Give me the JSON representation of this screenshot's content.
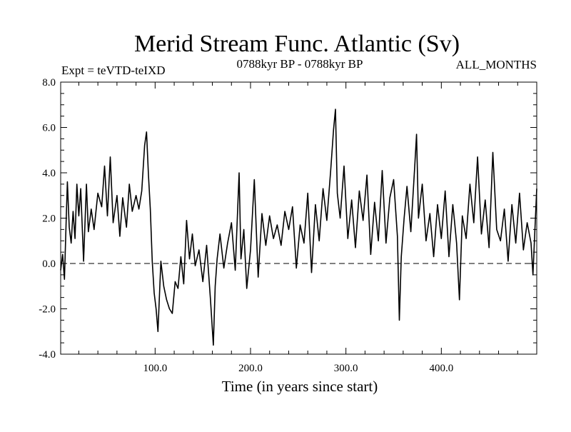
{
  "chart_data": {
    "type": "line",
    "title": "Merid Stream Func. Atlantic (Sv)",
    "subtitle_left": "Expt = teVTD-teIXD",
    "subtitle_center": "0788kyr BP - 0788kyr BP",
    "subtitle_right": "ALL_MONTHS",
    "xlabel": "Time (in years since start)",
    "ylabel": "",
    "xlim": [
      1,
      500
    ],
    "ylim": [
      -4.0,
      8.0
    ],
    "x_ticks": [
      100.0,
      200.0,
      300.0,
      400.0
    ],
    "x_tick_labels": [
      "100.0",
      "200.0",
      "300.0",
      "400.0"
    ],
    "y_ticks": [
      -4.0,
      -2.0,
      0.0,
      2.0,
      4.0,
      6.0,
      8.0
    ],
    "y_tick_labels": [
      "-4.0",
      "-2.0",
      "0.0",
      "2.0",
      "4.0",
      "6.0",
      "8.0"
    ],
    "reference_line": {
      "y": 0.0,
      "style": "dashed"
    },
    "grid": false,
    "series": [
      {
        "color": "#000000",
        "x": [
          1,
          3,
          5,
          7,
          8,
          10,
          12,
          14,
          16,
          18,
          20,
          22,
          25,
          28,
          30,
          33,
          36,
          40,
          44,
          47,
          50,
          53,
          56,
          60,
          63,
          66,
          70,
          73,
          76,
          80,
          83,
          86,
          89,
          91,
          93,
          95,
          97,
          99,
          101,
          103,
          106,
          109,
          112,
          115,
          118,
          121,
          124,
          127,
          130,
          133,
          136,
          139,
          142,
          146,
          150,
          154,
          158,
          161,
          163,
          165,
          168,
          172,
          176,
          180,
          184,
          188,
          190,
          193,
          196,
          200,
          204,
          208,
          212,
          216,
          220,
          224,
          228,
          232,
          236,
          240,
          244,
          248,
          252,
          256,
          260,
          264,
          268,
          272,
          276,
          280,
          284,
          287,
          289,
          291,
          294,
          298,
          302,
          306,
          310,
          314,
          318,
          322,
          326,
          330,
          334,
          338,
          342,
          346,
          350,
          354,
          356,
          358,
          361,
          364,
          368,
          372,
          374,
          376,
          380,
          384,
          388,
          392,
          396,
          400,
          404,
          408,
          412,
          414,
          416,
          419,
          422,
          426,
          430,
          434,
          438,
          442,
          446,
          450,
          454,
          458,
          462,
          466,
          470,
          474,
          478,
          482,
          486,
          490,
          494,
          496,
          498,
          500
        ],
        "values": [
          -0.3,
          0.4,
          -0.7,
          2.2,
          3.6,
          1.6,
          0.9,
          2.3,
          1.1,
          3.5,
          2.1,
          3.3,
          0.1,
          3.5,
          1.4,
          2.4,
          1.5,
          3.1,
          2.5,
          4.3,
          2.1,
          4.7,
          1.8,
          3.0,
          1.2,
          2.9,
          1.6,
          3.5,
          2.3,
          3.0,
          2.4,
          3.2,
          5.2,
          5.8,
          3.9,
          2.4,
          0.1,
          -1.3,
          -2.0,
          -3.0,
          0.1,
          -1.0,
          -1.6,
          -2.0,
          -2.2,
          -0.8,
          -1.1,
          0.3,
          -0.9,
          1.9,
          0.2,
          1.3,
          -0.1,
          0.6,
          -0.8,
          0.8,
          -1.6,
          -3.6,
          -1.0,
          0.2,
          1.3,
          -0.2,
          0.9,
          1.8,
          -0.3,
          4.0,
          0.2,
          1.5,
          -1.1,
          0.6,
          3.7,
          -0.6,
          2.2,
          0.8,
          2.1,
          1.1,
          1.7,
          0.8,
          2.3,
          1.5,
          2.5,
          -0.2,
          1.7,
          0.9,
          3.1,
          -0.4,
          2.6,
          1.0,
          3.3,
          1.9,
          4.1,
          5.9,
          6.8,
          3.1,
          2.0,
          4.3,
          1.1,
          2.8,
          0.7,
          3.2,
          1.9,
          3.9,
          0.4,
          2.7,
          1.0,
          4.1,
          0.9,
          2.9,
          3.7,
          1.2,
          -2.5,
          0.3,
          2.0,
          3.4,
          1.4,
          4.2,
          5.7,
          2.0,
          3.5,
          1.0,
          2.2,
          0.3,
          2.6,
          1.1,
          3.2,
          0.3,
          2.6,
          1.8,
          0.9,
          -1.6,
          2.1,
          1.1,
          3.5,
          1.8,
          4.7,
          1.3,
          2.8,
          0.7,
          4.9,
          1.5,
          1.0,
          2.4,
          0.1,
          2.6,
          0.9,
          3.1,
          0.6,
          1.8,
          0.9,
          -0.5,
          1.4,
          3.3
        ]
      }
    ]
  }
}
